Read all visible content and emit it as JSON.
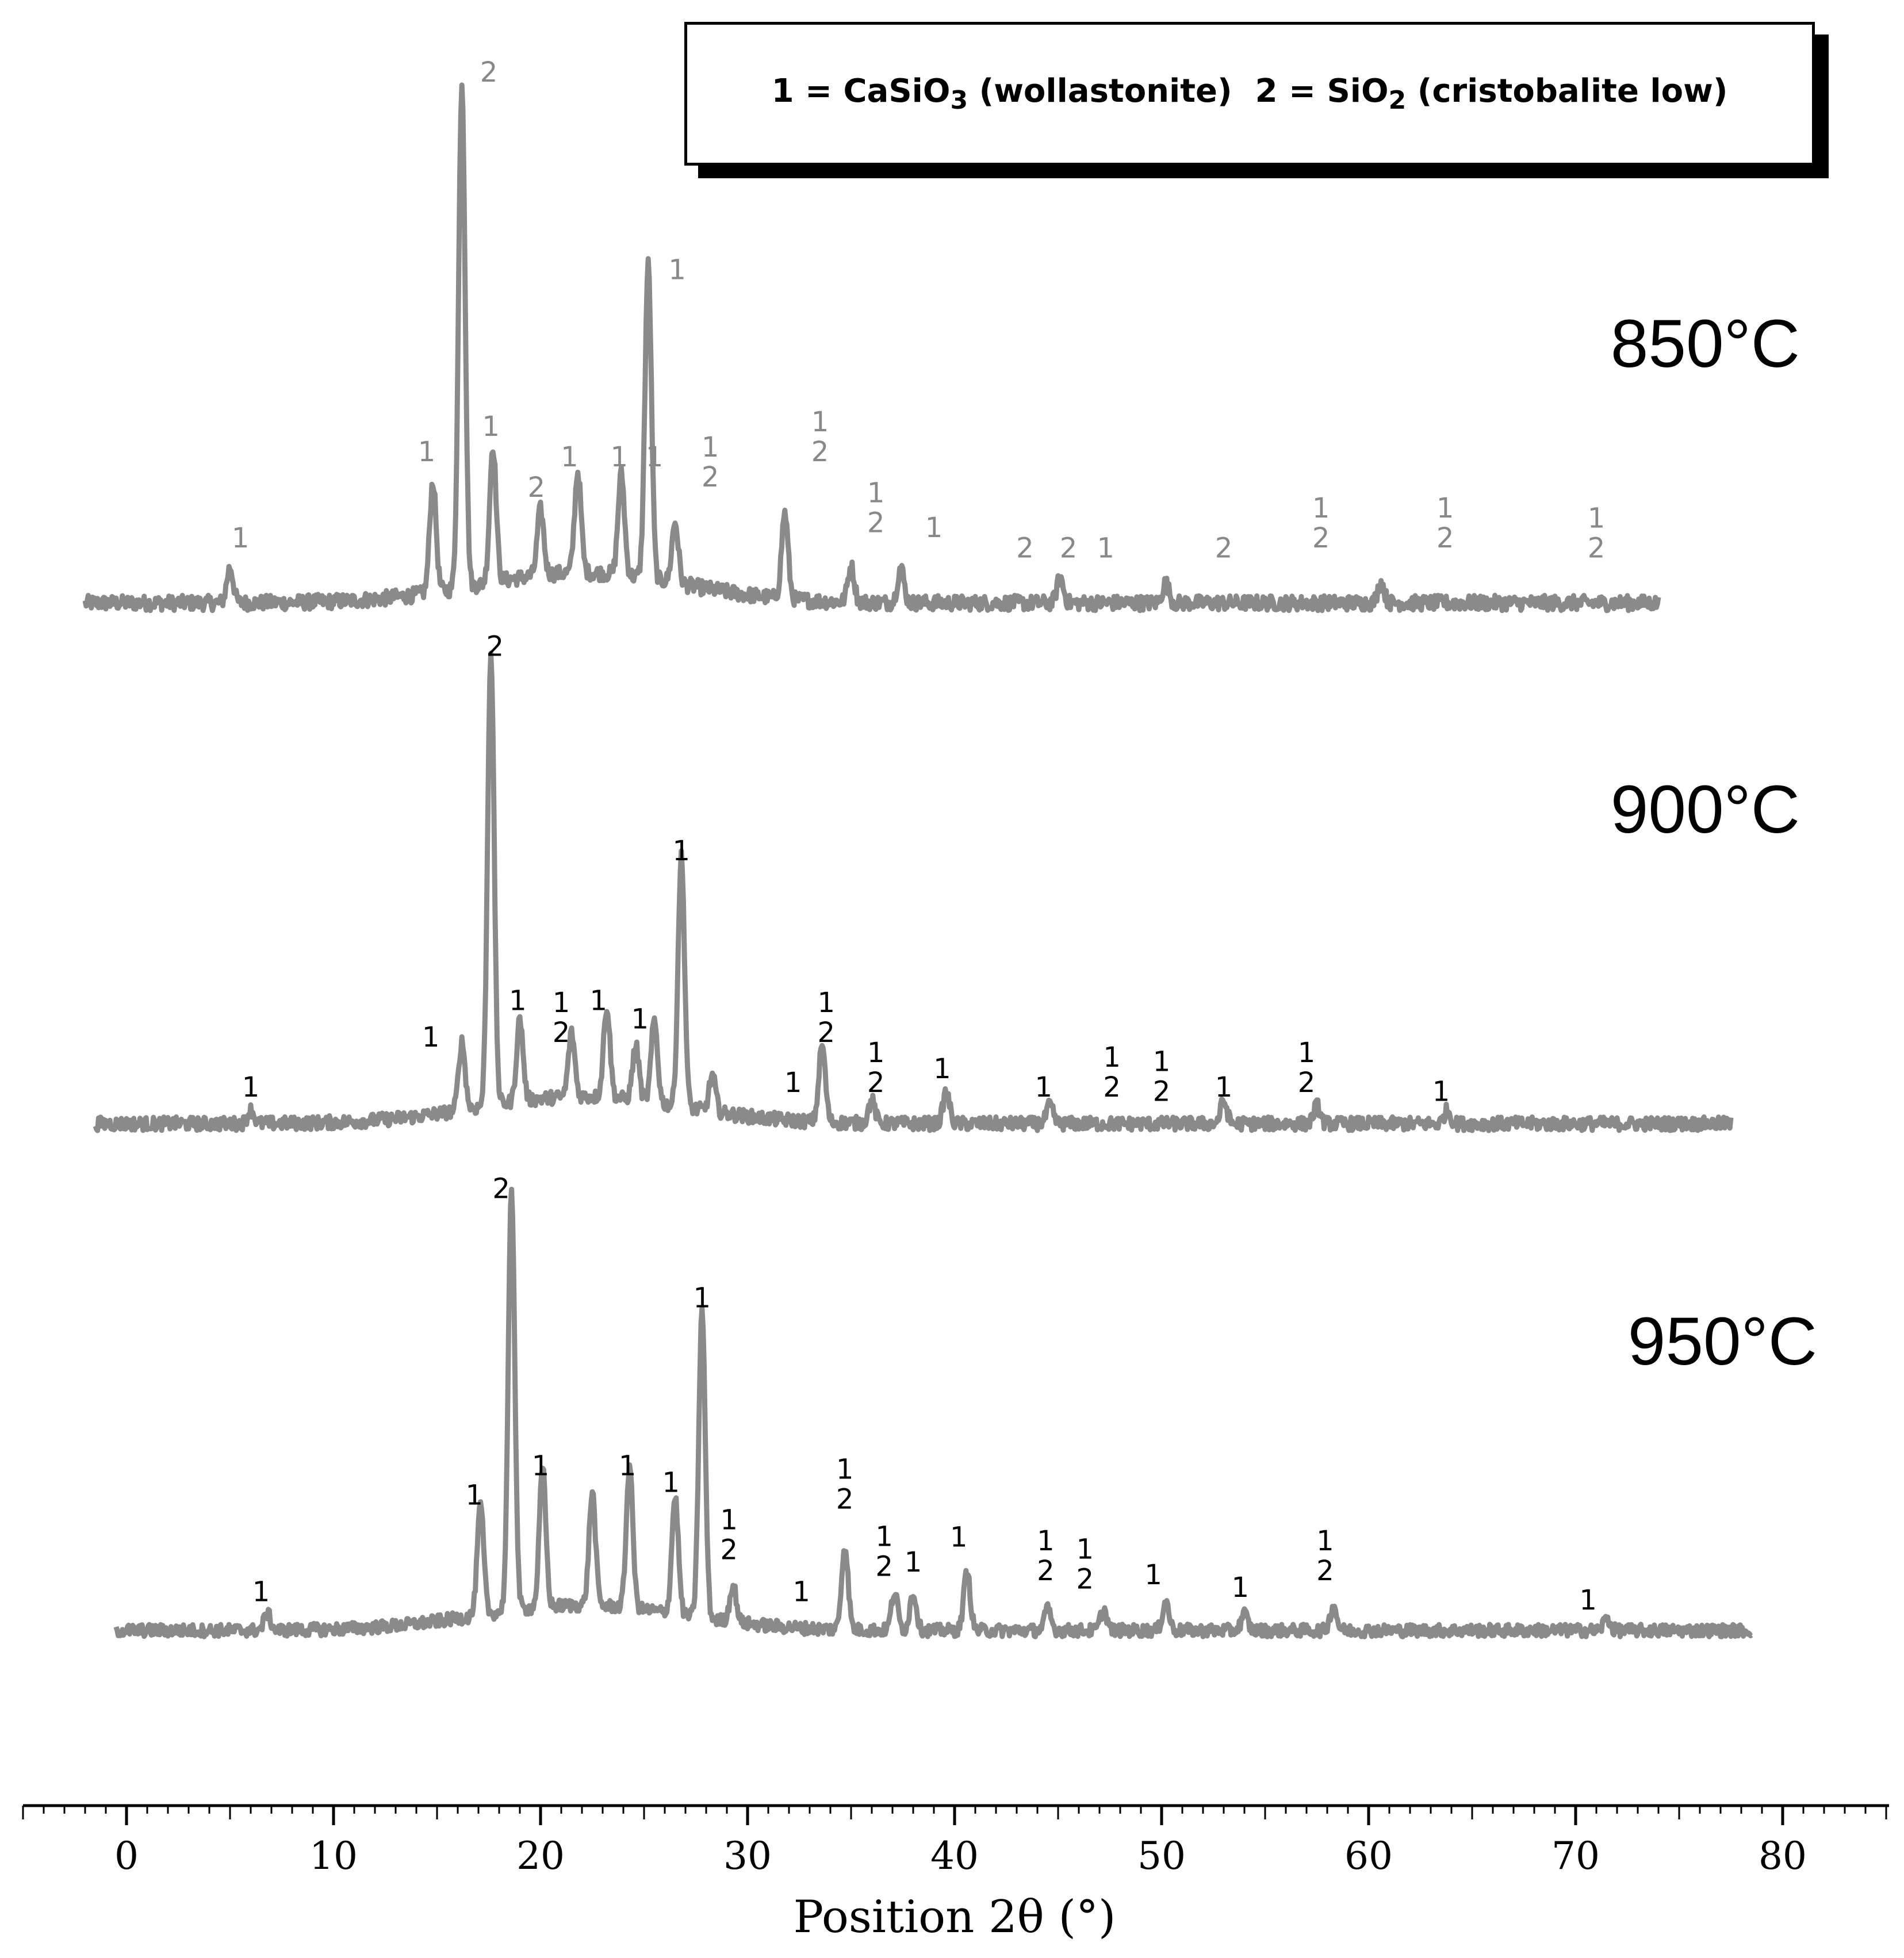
{
  "chart_data": {
    "type": "line",
    "xlabel": "Position 2θ (°)",
    "ylabel": "",
    "xlim": [
      -5,
      85
    ],
    "xticks": [
      0,
      10,
      20,
      30,
      40,
      50,
      60,
      70,
      80
    ],
    "legend": {
      "placement": "top-right",
      "entries": [
        {
          "key": "1",
          "name": "CaSiO",
          "sub": "3",
          "suffix": " (wollastonite)"
        },
        {
          "key": "2",
          "name": "SiO",
          "sub": "2",
          "suffix": " (cristobalite low)"
        }
      ]
    },
    "series": [
      {
        "name": "850°C",
        "label_color": "#888888",
        "x_range": [
          -2,
          74
        ],
        "baseline": 0.03,
        "peaks": [
          {
            "x": 5.0,
            "h": 0.07
          },
          {
            "x": 14.8,
            "h": 0.22
          },
          {
            "x": 16.2,
            "h": 1.0
          },
          {
            "x": 17.7,
            "h": 0.27
          },
          {
            "x": 20.0,
            "h": 0.13
          },
          {
            "x": 21.8,
            "h": 0.2
          },
          {
            "x": 23.9,
            "h": 0.2
          },
          {
            "x": 25.2,
            "h": 0.62
          },
          {
            "x": 26.5,
            "h": 0.12
          },
          {
            "x": 31.8,
            "h": 0.17
          },
          {
            "x": 35.0,
            "h": 0.07
          },
          {
            "x": 37.4,
            "h": 0.07
          },
          {
            "x": 45.1,
            "h": 0.05
          },
          {
            "x": 50.2,
            "h": 0.04
          },
          {
            "x": 60.6,
            "h": 0.04
          }
        ],
        "annotations": [
          {
            "x": 5.5,
            "labels": [
              "1"
            ],
            "y": 0.14
          },
          {
            "x": 14.5,
            "labels": [
              "1"
            ],
            "y": 0.31
          },
          {
            "x": 17.5,
            "labels": [
              "2"
            ],
            "y": 1.06
          },
          {
            "x": 17.6,
            "labels": [
              "1"
            ],
            "y": 0.36
          },
          {
            "x": 19.8,
            "labels": [
              "2"
            ],
            "y": 0.24
          },
          {
            "x": 21.4,
            "labels": [
              "1"
            ],
            "y": 0.3
          },
          {
            "x": 23.8,
            "labels": [
              "1"
            ],
            "y": 0.3
          },
          {
            "x": 25.5,
            "labels": [
              "1"
            ],
            "y": 0.3
          },
          {
            "x": 26.6,
            "labels": [
              "1"
            ],
            "y": 0.67
          },
          {
            "x": 28.2,
            "labels": [
              "1",
              "2"
            ],
            "y": 0.26
          },
          {
            "x": 33.5,
            "labels": [
              "1",
              "2"
            ],
            "y": 0.31
          },
          {
            "x": 36.2,
            "labels": [
              "1",
              "2"
            ],
            "y": 0.17
          },
          {
            "x": 39.0,
            "labels": [
              "1"
            ],
            "y": 0.16
          },
          {
            "x": 43.4,
            "labels": [
              "2"
            ],
            "y": 0.12
          },
          {
            "x": 45.5,
            "labels": [
              "2"
            ],
            "y": 0.12
          },
          {
            "x": 47.3,
            "labels": [
              "1"
            ],
            "y": 0.12
          },
          {
            "x": 53.0,
            "labels": [
              "2"
            ],
            "y": 0.12
          },
          {
            "x": 57.7,
            "labels": [
              "1",
              "2"
            ],
            "y": 0.14
          },
          {
            "x": 63.7,
            "labels": [
              "1",
              "2"
            ],
            "y": 0.14
          },
          {
            "x": 71.0,
            "labels": [
              "1",
              "2"
            ],
            "y": 0.12
          }
        ]
      },
      {
        "name": "900°C",
        "label_color": "#000000",
        "x_range": [
          -1.5,
          77.5
        ],
        "baseline": 0.02,
        "peaks": [
          {
            "x": 6.0,
            "h": 0.03
          },
          {
            "x": 16.2,
            "h": 0.15
          },
          {
            "x": 17.6,
            "h": 1.0
          },
          {
            "x": 19.0,
            "h": 0.18
          },
          {
            "x": 21.5,
            "h": 0.14
          },
          {
            "x": 23.2,
            "h": 0.2
          },
          {
            "x": 24.6,
            "h": 0.12
          },
          {
            "x": 25.5,
            "h": 0.18
          },
          {
            "x": 26.8,
            "h": 0.55
          },
          {
            "x": 28.3,
            "h": 0.08
          },
          {
            "x": 33.6,
            "h": 0.17
          },
          {
            "x": 36.0,
            "h": 0.05
          },
          {
            "x": 39.6,
            "h": 0.07
          },
          {
            "x": 44.6,
            "h": 0.04
          },
          {
            "x": 53.0,
            "h": 0.05
          },
          {
            "x": 57.5,
            "h": 0.04
          },
          {
            "x": 63.8,
            "h": 0.03
          }
        ],
        "annotations": [
          {
            "x": 6.0,
            "labels": [
              "1"
            ],
            "y": 0.08
          },
          {
            "x": 14.7,
            "labels": [
              "1"
            ],
            "y": 0.19
          },
          {
            "x": 17.8,
            "labels": [
              "2"
            ],
            "y": 1.05
          },
          {
            "x": 18.9,
            "labels": [
              "1"
            ],
            "y": 0.27
          },
          {
            "x": 21.0,
            "labels": [
              "1",
              "2"
            ],
            "y": 0.2
          },
          {
            "x": 22.8,
            "labels": [
              "1"
            ],
            "y": 0.27
          },
          {
            "x": 24.8,
            "labels": [
              "1"
            ],
            "y": 0.23
          },
          {
            "x": 26.8,
            "labels": [
              "1"
            ],
            "y": 0.6
          },
          {
            "x": 32.2,
            "labels": [
              "1"
            ],
            "y": 0.09
          },
          {
            "x": 33.8,
            "labels": [
              "1",
              "2"
            ],
            "y": 0.2
          },
          {
            "x": 36.2,
            "labels": [
              "1",
              "2"
            ],
            "y": 0.09
          },
          {
            "x": 39.4,
            "labels": [
              "1"
            ],
            "y": 0.12
          },
          {
            "x": 44.3,
            "labels": [
              "1"
            ],
            "y": 0.08
          },
          {
            "x": 47.6,
            "labels": [
              "1",
              "2"
            ],
            "y": 0.08
          },
          {
            "x": 50.0,
            "labels": [
              "1",
              "2"
            ],
            "y": 0.07
          },
          {
            "x": 53.0,
            "labels": [
              "1"
            ],
            "y": 0.08
          },
          {
            "x": 57.0,
            "labels": [
              "1",
              "2"
            ],
            "y": 0.09
          },
          {
            "x": 63.5,
            "labels": [
              "1"
            ],
            "y": 0.07
          }
        ]
      },
      {
        "name": "950°C",
        "label_color": "#000000",
        "x_range": [
          -0.5,
          78.5
        ],
        "baseline": 0.02,
        "peaks": [
          {
            "x": 6.8,
            "h": 0.04
          },
          {
            "x": 17.1,
            "h": 0.26
          },
          {
            "x": 18.6,
            "h": 1.0
          },
          {
            "x": 20.1,
            "h": 0.33
          },
          {
            "x": 22.5,
            "h": 0.27
          },
          {
            "x": 24.3,
            "h": 0.34
          },
          {
            "x": 26.5,
            "h": 0.28
          },
          {
            "x": 27.8,
            "h": 0.73
          },
          {
            "x": 29.3,
            "h": 0.09
          },
          {
            "x": 34.7,
            "h": 0.2
          },
          {
            "x": 37.1,
            "h": 0.09
          },
          {
            "x": 38.0,
            "h": 0.09
          },
          {
            "x": 40.6,
            "h": 0.14
          },
          {
            "x": 44.5,
            "h": 0.05
          },
          {
            "x": 47.2,
            "h": 0.05
          },
          {
            "x": 50.2,
            "h": 0.07
          },
          {
            "x": 54.0,
            "h": 0.04
          },
          {
            "x": 58.3,
            "h": 0.06
          },
          {
            "x": 71.5,
            "h": 0.03
          }
        ],
        "annotations": [
          {
            "x": 6.5,
            "labels": [
              "1"
            ],
            "y": 0.09
          },
          {
            "x": 16.8,
            "labels": [
              "1"
            ],
            "y": 0.32
          },
          {
            "x": 18.1,
            "labels": [
              "2"
            ],
            "y": 1.05
          },
          {
            "x": 20.0,
            "labels": [
              "1"
            ],
            "y": 0.39
          },
          {
            "x": 24.2,
            "labels": [
              "1"
            ],
            "y": 0.39
          },
          {
            "x": 26.3,
            "labels": [
              "1"
            ],
            "y": 0.35
          },
          {
            "x": 27.8,
            "labels": [
              "1"
            ],
            "y": 0.79
          },
          {
            "x": 29.1,
            "labels": [
              "1",
              "2"
            ],
            "y": 0.19
          },
          {
            "x": 32.6,
            "labels": [
              "1"
            ],
            "y": 0.09
          },
          {
            "x": 34.7,
            "labels": [
              "1",
              "2"
            ],
            "y": 0.31
          },
          {
            "x": 36.6,
            "labels": [
              "1",
              "2"
            ],
            "y": 0.15
          },
          {
            "x": 38.0,
            "labels": [
              "1"
            ],
            "y": 0.16
          },
          {
            "x": 40.2,
            "labels": [
              "1"
            ],
            "y": 0.22
          },
          {
            "x": 44.4,
            "labels": [
              "1",
              "2"
            ],
            "y": 0.14
          },
          {
            "x": 46.3,
            "labels": [
              "1",
              "2"
            ],
            "y": 0.12
          },
          {
            "x": 49.6,
            "labels": [
              "1"
            ],
            "y": 0.13
          },
          {
            "x": 53.8,
            "labels": [
              "1"
            ],
            "y": 0.1
          },
          {
            "x": 57.9,
            "labels": [
              "1",
              "2"
            ],
            "y": 0.14
          },
          {
            "x": 70.6,
            "labels": [
              "1"
            ],
            "y": 0.07
          }
        ]
      }
    ]
  }
}
